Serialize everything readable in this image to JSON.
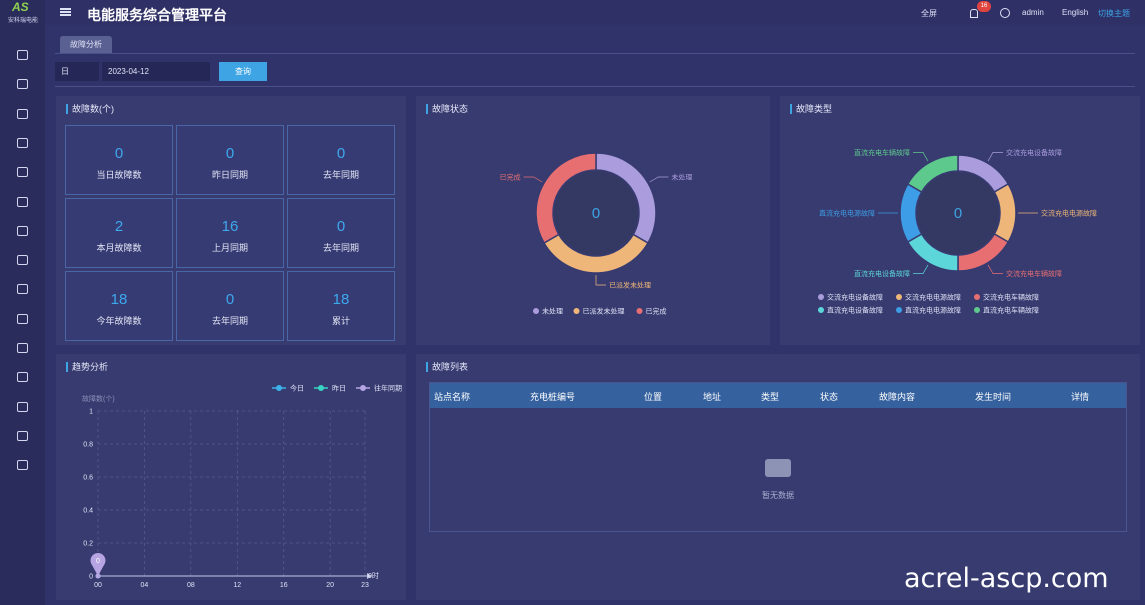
{
  "header": {
    "logo_mark": "AS",
    "logo": "安科瑞电能",
    "title": "电能服务综合管理平台",
    "fullscreen": "全屏",
    "badge": 16,
    "user": "admin",
    "language": "English",
    "theme": "切换主题"
  },
  "tabs": [
    "故障分析"
  ],
  "filter": {
    "period": "日",
    "date": "2023-04-12",
    "query": "查询"
  },
  "cards_title": "故障数(个)",
  "cards": [
    {
      "value": 0,
      "label": "当日故障数"
    },
    {
      "value": 0,
      "label": "昨日同期"
    },
    {
      "value": 0,
      "label": "去年同期"
    },
    {
      "value": 2,
      "label": "本月故障数"
    },
    {
      "value": 16,
      "label": "上月同期"
    },
    {
      "value": 0,
      "label": "去年同期"
    },
    {
      "value": 18,
      "label": "今年故障数"
    },
    {
      "value": 0,
      "label": "去年同期"
    },
    {
      "value": 18,
      "label": "累计"
    }
  ],
  "chart_data": [
    {
      "type": "pie",
      "title": "故障状态",
      "total": 0,
      "categories": [
        "未处理",
        "已派发未处理",
        "已完成"
      ],
      "values": [
        0,
        0,
        0
      ],
      "colors": [
        "#ab9ddd",
        "#efb679",
        "#e76f72"
      ]
    },
    {
      "type": "pie",
      "title": "故障类型",
      "total": 0,
      "categories": [
        "交流充电设备故障",
        "交流充电电源故障",
        "交流充电车辆故障",
        "直流充电设备故障",
        "直流充电电源故障",
        "直流充电车辆故障"
      ],
      "values": [
        0,
        0,
        0,
        0,
        0,
        0
      ],
      "colors": [
        "#ab9ddd",
        "#efb679",
        "#e76f72",
        "#5cd6d9",
        "#3d9de6",
        "#5ec98d"
      ]
    },
    {
      "type": "line",
      "title": "趋势分析",
      "ylabel": "故障数(个)",
      "xlabel": "0时",
      "xlim": [
        0,
        23
      ],
      "xticks": [
        {
          "value": 0,
          "label": "00"
        },
        {
          "value": 4,
          "label": "04"
        },
        {
          "value": 8,
          "label": "08"
        },
        12,
        16,
        20,
        23
      ],
      "ylim": [
        0,
        1
      ],
      "yticks": [
        0,
        0.2,
        0.4,
        0.6,
        0.8,
        1
      ],
      "grid": true,
      "series": [
        {
          "name": "今日",
          "color": "#3db2ea",
          "x": [
            0
          ],
          "values": [
            0
          ]
        },
        {
          "name": "昨日",
          "color": "#39d3c3",
          "x": [
            0
          ],
          "values": [
            0
          ]
        },
        {
          "name": "往年同期",
          "color": "#b7a4e2",
          "x": [
            0
          ],
          "values": [
            0
          ]
        }
      ]
    }
  ],
  "table": {
    "title": "故障列表",
    "columns": [
      "站点名称",
      "充电桩编号",
      "位置",
      "地址",
      "类型",
      "状态",
      "故障内容",
      "发生时间",
      "详情"
    ],
    "empty": "暂无数据"
  },
  "watermark": "acrel-ascp.com"
}
